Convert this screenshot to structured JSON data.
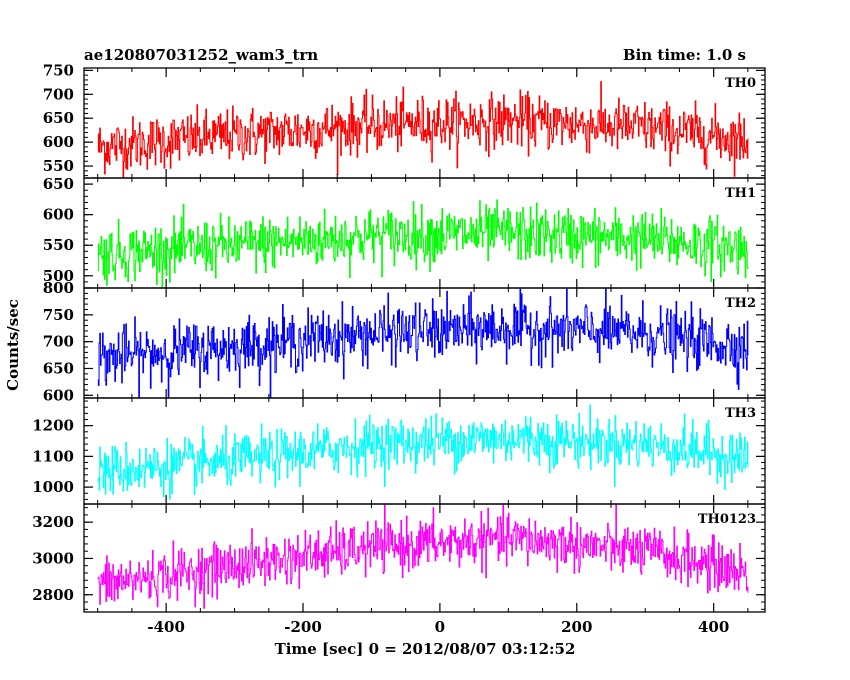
{
  "header": {
    "title": "ae120807031252_wam3_trn",
    "bin_time": "Bin time: 1.0 s"
  },
  "chart_data": {
    "type": "line",
    "title": "ae120807031252_wam3_trn",
    "subtitle": "Bin time: 1.0 s",
    "xlabel": "Time [sec] 0 = 2012/08/07 03:12:52",
    "ylabel": "Counts/sec",
    "xlim": [
      -520,
      475
    ],
    "x_ticks": [
      -400,
      -200,
      0,
      200,
      400
    ],
    "x_range_data": [
      -500,
      450
    ],
    "bin_seconds": 1.0,
    "grid": false,
    "legend": "none",
    "series": [
      {
        "name": "TH0",
        "color": "#ff0000",
        "ylim": [
          525,
          755
        ],
        "y_ticks": [
          550,
          600,
          650,
          700,
          750
        ],
        "trend_x": [
          -500,
          -300,
          -100,
          100,
          300,
          450
        ],
        "trend_y": [
          590,
          615,
          635,
          645,
          630,
          605
        ],
        "noise_sd": 28
      },
      {
        "name": "TH1",
        "color": "#00ff00",
        "ylim": [
          480,
          660
        ],
        "y_ticks": [
          500,
          550,
          600,
          650
        ],
        "trend_x": [
          -500,
          -300,
          -100,
          100,
          300,
          450
        ],
        "trend_y": [
          535,
          550,
          565,
          570,
          560,
          545
        ],
        "noise_sd": 23
      },
      {
        "name": "TH2",
        "color": "#0000ff",
        "ylim": [
          595,
          800
        ],
        "y_ticks": [
          600,
          650,
          700,
          750,
          800
        ],
        "trend_x": [
          -500,
          -300,
          -100,
          100,
          300,
          450
        ],
        "trend_y": [
          670,
          690,
          715,
          725,
          715,
          690
        ],
        "noise_sd": 27
      },
      {
        "name": "TH3",
        "color": "#00ffff",
        "ylim": [
          945,
          1290
        ],
        "y_ticks": [
          1000,
          1100,
          1200
        ],
        "trend_x": [
          -500,
          -300,
          -100,
          100,
          300,
          450
        ],
        "trend_y": [
          1050,
          1085,
          1140,
          1160,
          1140,
          1095
        ],
        "noise_sd": 42
      },
      {
        "name": "TH0123",
        "color": "#ff00ff",
        "ylim": [
          2705,
          3300
        ],
        "y_ticks": [
          2800,
          3000,
          3200
        ],
        "trend_x": [
          -500,
          -300,
          -100,
          100,
          300,
          450
        ],
        "trend_y": [
          2855,
          2960,
          3060,
          3110,
          3040,
          2920
        ],
        "noise_sd": 70
      }
    ]
  }
}
